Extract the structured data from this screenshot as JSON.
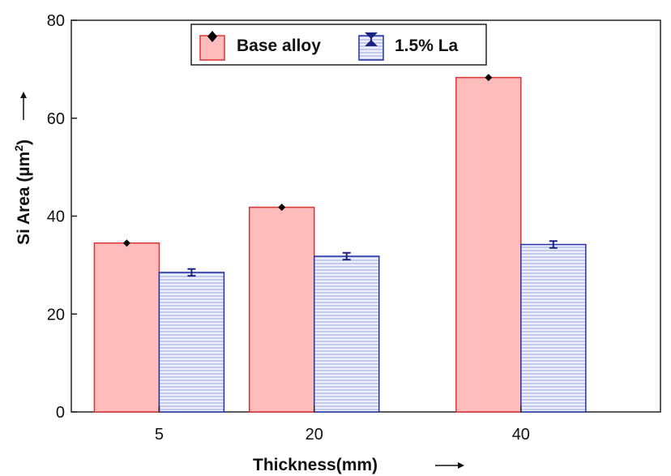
{
  "chart_data": {
    "type": "bar",
    "categories": [
      "5",
      "20",
      "40"
    ],
    "category_positions": [
      5,
      20,
      40
    ],
    "xlim": [
      -3.5,
      53.5
    ],
    "ylim": [
      0,
      80
    ],
    "yticks": [
      0,
      20,
      40,
      60,
      80
    ],
    "ytick_labels": [
      "0",
      "20",
      "40",
      "60",
      "80"
    ],
    "xlabel": "Thickness(mm)",
    "ylabel": "Si Area (µm",
    "ylabel_sup": "2",
    "ylabel_close": ")",
    "grid": false,
    "legend_position": "top-center",
    "series": [
      {
        "name": "Base alloy",
        "values": [
          34.5,
          41.8,
          68.3
        ],
        "errors": [
          0.3,
          0.3,
          0.3
        ],
        "fill": "#ffbcbc",
        "stroke": "#dd3333",
        "pattern": "solid",
        "marker": "diamond",
        "marker_color": "#000000"
      },
      {
        "name": "1.5% La",
        "values": [
          28.5,
          31.8,
          34.2
        ],
        "errors": [
          0.7,
          0.7,
          0.7
        ],
        "fill": "#e8ebfa",
        "stroke": "#2233aa",
        "pattern": "horizontal-lines",
        "marker": "errorbar",
        "marker_color": "#1a237e"
      }
    ]
  }
}
